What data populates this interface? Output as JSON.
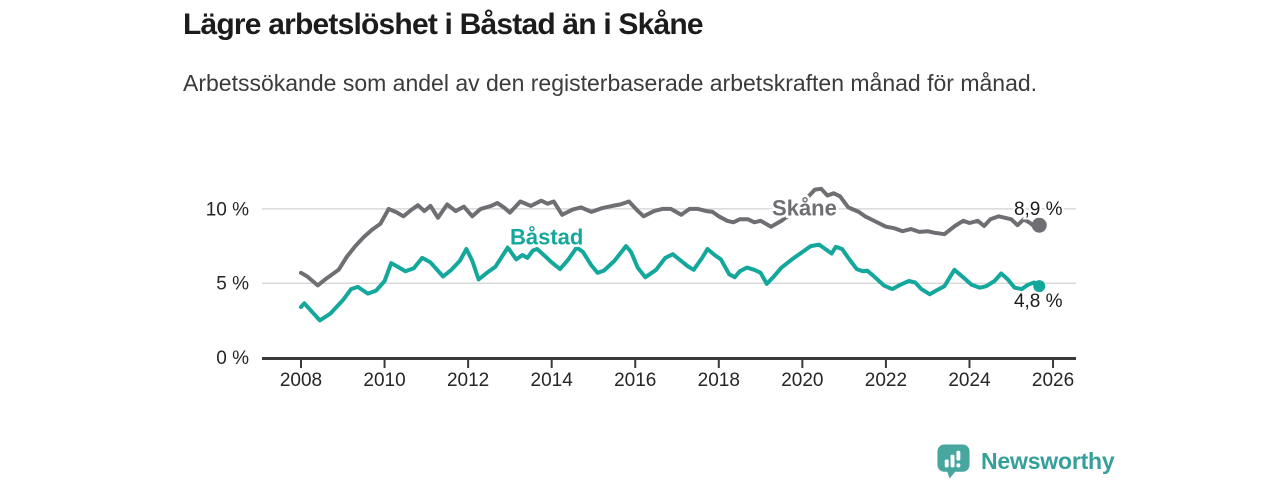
{
  "header": {
    "title": "Lägre arbetslöshet i Båstad än i Skåne",
    "subtitle": "Arbetssökande som andel av den registerbaserade arbetskraften månad för månad."
  },
  "footer": {
    "brand": "Newsworthy",
    "brand_color": "#35a09a",
    "icon_color": "#47a69e"
  },
  "chart_data": {
    "type": "line",
    "title": "Lägre arbetslöshet i Båstad än i Skåne",
    "unit": "%",
    "grid": "horizontal-only",
    "legend_position": "inline-labels",
    "x_axis": {
      "min": 2007.05,
      "max": 2026.55,
      "ticks": [
        2008,
        2010,
        2012,
        2014,
        2016,
        2018,
        2020,
        2022,
        2024,
        2026
      ]
    },
    "y_axis": {
      "min": 0,
      "max": 12.3,
      "ticks": [
        {
          "value": 0,
          "label": "0 %"
        },
        {
          "value": 5,
          "label": "5 %"
        },
        {
          "value": 10,
          "label": "10 %"
        }
      ]
    },
    "axis_color": "#3a3a3a",
    "grid_color": "#d9d9d9",
    "series": [
      {
        "name": "Skåne",
        "color": "#6f6e73",
        "end_label": "8,9 %",
        "end_value": 8.9,
        "end_label_side": "above",
        "name_label_pos": {
          "year": 2020.05,
          "value": 9.55
        },
        "points": [
          [
            2008.0,
            5.7
          ],
          [
            2008.15,
            5.45
          ],
          [
            2008.4,
            4.85
          ],
          [
            2008.6,
            5.3
          ],
          [
            2008.9,
            5.9
          ],
          [
            2009.1,
            6.8
          ],
          [
            2009.3,
            7.5
          ],
          [
            2009.5,
            8.1
          ],
          [
            2009.7,
            8.6
          ],
          [
            2009.9,
            9.0
          ],
          [
            2010.1,
            10.0
          ],
          [
            2010.3,
            9.75
          ],
          [
            2010.45,
            9.5
          ],
          [
            2010.65,
            9.95
          ],
          [
            2010.8,
            10.25
          ],
          [
            2010.95,
            9.85
          ],
          [
            2011.1,
            10.2
          ],
          [
            2011.28,
            9.4
          ],
          [
            2011.5,
            10.3
          ],
          [
            2011.7,
            9.85
          ],
          [
            2011.9,
            10.15
          ],
          [
            2012.1,
            9.5
          ],
          [
            2012.3,
            10.0
          ],
          [
            2012.55,
            10.2
          ],
          [
            2012.7,
            10.4
          ],
          [
            2012.88,
            10.05
          ],
          [
            2013.0,
            9.75
          ],
          [
            2013.25,
            10.5
          ],
          [
            2013.5,
            10.2
          ],
          [
            2013.75,
            10.55
          ],
          [
            2013.9,
            10.35
          ],
          [
            2014.05,
            10.5
          ],
          [
            2014.25,
            9.6
          ],
          [
            2014.5,
            9.95
          ],
          [
            2014.7,
            10.1
          ],
          [
            2014.95,
            9.8
          ],
          [
            2015.2,
            10.05
          ],
          [
            2015.45,
            10.2
          ],
          [
            2015.65,
            10.3
          ],
          [
            2015.85,
            10.5
          ],
          [
            2016.05,
            9.9
          ],
          [
            2016.2,
            9.5
          ],
          [
            2016.45,
            9.85
          ],
          [
            2016.65,
            10.0
          ],
          [
            2016.85,
            10.0
          ],
          [
            2017.1,
            9.6
          ],
          [
            2017.3,
            10.0
          ],
          [
            2017.5,
            10.0
          ],
          [
            2017.7,
            9.85
          ],
          [
            2017.85,
            9.8
          ],
          [
            2018.0,
            9.5
          ],
          [
            2018.2,
            9.2
          ],
          [
            2018.35,
            9.1
          ],
          [
            2018.5,
            9.3
          ],
          [
            2018.7,
            9.3
          ],
          [
            2018.85,
            9.1
          ],
          [
            2019.0,
            9.2
          ],
          [
            2019.25,
            8.8
          ],
          [
            2019.5,
            9.2
          ],
          [
            2019.7,
            9.6
          ],
          [
            2019.9,
            10.1
          ],
          [
            2020.1,
            10.7
          ],
          [
            2020.3,
            11.3
          ],
          [
            2020.45,
            11.35
          ],
          [
            2020.6,
            10.9
          ],
          [
            2020.75,
            11.05
          ],
          [
            2020.9,
            10.85
          ],
          [
            2021.1,
            10.1
          ],
          [
            2021.35,
            9.8
          ],
          [
            2021.5,
            9.5
          ],
          [
            2021.75,
            9.15
          ],
          [
            2022.0,
            8.8
          ],
          [
            2022.2,
            8.7
          ],
          [
            2022.4,
            8.5
          ],
          [
            2022.6,
            8.65
          ],
          [
            2022.8,
            8.45
          ],
          [
            2023.0,
            8.5
          ],
          [
            2023.15,
            8.4
          ],
          [
            2023.4,
            8.3
          ],
          [
            2023.65,
            8.85
          ],
          [
            2023.85,
            9.2
          ],
          [
            2024.0,
            9.05
          ],
          [
            2024.2,
            9.2
          ],
          [
            2024.35,
            8.85
          ],
          [
            2024.5,
            9.3
          ],
          [
            2024.7,
            9.5
          ],
          [
            2024.85,
            9.4
          ],
          [
            2025.0,
            9.3
          ],
          [
            2025.15,
            8.9
          ],
          [
            2025.3,
            9.3
          ],
          [
            2025.45,
            9.05
          ],
          [
            2025.6,
            8.7
          ],
          [
            2025.67,
            8.9
          ]
        ]
      },
      {
        "name": "Båstad",
        "color": "#14a79c",
        "end_label": "4,8 %",
        "end_value": 4.8,
        "end_label_side": "below",
        "name_label_pos": {
          "year": 2013.88,
          "value": 7.62
        },
        "points": [
          [
            2008.0,
            3.4
          ],
          [
            2008.08,
            3.65
          ],
          [
            2008.45,
            2.5
          ],
          [
            2008.7,
            2.95
          ],
          [
            2009.0,
            3.85
          ],
          [
            2009.2,
            4.6
          ],
          [
            2009.36,
            4.75
          ],
          [
            2009.6,
            4.3
          ],
          [
            2009.8,
            4.5
          ],
          [
            2010.0,
            5.15
          ],
          [
            2010.16,
            6.35
          ],
          [
            2010.35,
            6.05
          ],
          [
            2010.5,
            5.8
          ],
          [
            2010.7,
            6.0
          ],
          [
            2010.9,
            6.7
          ],
          [
            2011.1,
            6.4
          ],
          [
            2011.4,
            5.45
          ],
          [
            2011.6,
            5.9
          ],
          [
            2011.8,
            6.5
          ],
          [
            2011.96,
            7.3
          ],
          [
            2012.1,
            6.5
          ],
          [
            2012.25,
            5.25
          ],
          [
            2012.45,
            5.7
          ],
          [
            2012.65,
            6.1
          ],
          [
            2012.95,
            7.4
          ],
          [
            2013.15,
            6.6
          ],
          [
            2013.3,
            6.9
          ],
          [
            2013.42,
            6.7
          ],
          [
            2013.55,
            7.2
          ],
          [
            2013.65,
            7.3
          ],
          [
            2013.85,
            6.8
          ],
          [
            2014.0,
            6.4
          ],
          [
            2014.2,
            5.95
          ],
          [
            2014.4,
            6.6
          ],
          [
            2014.6,
            7.4
          ],
          [
            2014.75,
            7.1
          ],
          [
            2014.95,
            6.2
          ],
          [
            2015.1,
            5.7
          ],
          [
            2015.25,
            5.85
          ],
          [
            2015.5,
            6.5
          ],
          [
            2015.78,
            7.5
          ],
          [
            2015.9,
            7.1
          ],
          [
            2016.06,
            6.05
          ],
          [
            2016.24,
            5.4
          ],
          [
            2016.5,
            5.9
          ],
          [
            2016.72,
            6.7
          ],
          [
            2016.9,
            6.95
          ],
          [
            2017.1,
            6.5
          ],
          [
            2017.25,
            6.15
          ],
          [
            2017.4,
            5.9
          ],
          [
            2017.6,
            6.7
          ],
          [
            2017.73,
            7.3
          ],
          [
            2017.9,
            6.9
          ],
          [
            2018.05,
            6.6
          ],
          [
            2018.25,
            5.6
          ],
          [
            2018.38,
            5.4
          ],
          [
            2018.5,
            5.8
          ],
          [
            2018.67,
            6.05
          ],
          [
            2018.85,
            5.9
          ],
          [
            2019.0,
            5.7
          ],
          [
            2019.15,
            4.95
          ],
          [
            2019.3,
            5.4
          ],
          [
            2019.5,
            6.05
          ],
          [
            2019.75,
            6.6
          ],
          [
            2020.0,
            7.1
          ],
          [
            2020.2,
            7.5
          ],
          [
            2020.4,
            7.6
          ],
          [
            2020.55,
            7.3
          ],
          [
            2020.7,
            7.0
          ],
          [
            2020.8,
            7.45
          ],
          [
            2020.95,
            7.3
          ],
          [
            2021.1,
            6.7
          ],
          [
            2021.3,
            5.95
          ],
          [
            2021.45,
            5.8
          ],
          [
            2021.55,
            5.85
          ],
          [
            2021.7,
            5.5
          ],
          [
            2021.95,
            4.85
          ],
          [
            2022.15,
            4.6
          ],
          [
            2022.35,
            4.9
          ],
          [
            2022.55,
            5.15
          ],
          [
            2022.7,
            5.05
          ],
          [
            2022.85,
            4.6
          ],
          [
            2023.05,
            4.25
          ],
          [
            2023.2,
            4.5
          ],
          [
            2023.4,
            4.8
          ],
          [
            2023.64,
            5.9
          ],
          [
            2023.85,
            5.4
          ],
          [
            2024.05,
            4.9
          ],
          [
            2024.25,
            4.7
          ],
          [
            2024.4,
            4.8
          ],
          [
            2024.6,
            5.15
          ],
          [
            2024.76,
            5.65
          ],
          [
            2024.92,
            5.25
          ],
          [
            2025.08,
            4.7
          ],
          [
            2025.25,
            4.6
          ],
          [
            2025.4,
            4.9
          ],
          [
            2025.55,
            5.05
          ],
          [
            2025.67,
            4.8
          ]
        ]
      }
    ]
  }
}
